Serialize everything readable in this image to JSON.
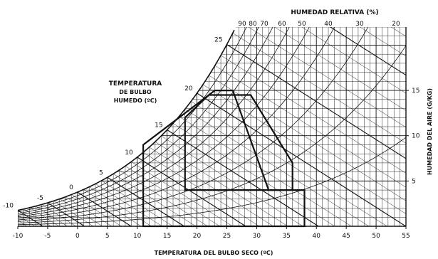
{
  "chart_data": {
    "type": "psychrometric",
    "title": "",
    "top_label": "HUMEDAD RELATIVA (%)",
    "left_label_lines": [
      "TEMPERATURA",
      "DE BULBO",
      "HUMEDO (ºC)"
    ],
    "xlabel": "TEMPERATURA DEL BULBO SECO (ºC)",
    "ylabel": "HUMEDAD DEL AIRE (G/KG)",
    "x_ticks": [
      -10,
      -5,
      0,
      5,
      10,
      15,
      20,
      25,
      30,
      35,
      40,
      45,
      50,
      55
    ],
    "y_ticks": [
      5,
      10,
      15
    ],
    "wet_bulb_labels": [
      -10,
      -5,
      0,
      5,
      10,
      15,
      20,
      25
    ],
    "rh_labels": [
      90,
      80,
      70,
      60,
      50,
      40,
      30,
      20
    ],
    "xlim": [
      -10,
      55
    ],
    "ylim": [
      0,
      22
    ],
    "comfort_zones": [
      {
        "name": "",
        "points": [
          [
            11,
            9
          ],
          [
            23,
            15
          ],
          [
            26,
            15
          ],
          [
            32,
            4
          ],
          [
            38,
            4
          ],
          [
            38,
            0
          ],
          [
            11,
            0
          ]
        ]
      },
      {
        "name": "",
        "points": [
          [
            18,
            12
          ],
          [
            22,
            14.5
          ],
          [
            29,
            14.5
          ],
          [
            36,
            7
          ],
          [
            36,
            4
          ],
          [
            18,
            4
          ]
        ]
      }
    ]
  },
  "colors": {
    "line": "#111111",
    "background": "#ffffff"
  }
}
